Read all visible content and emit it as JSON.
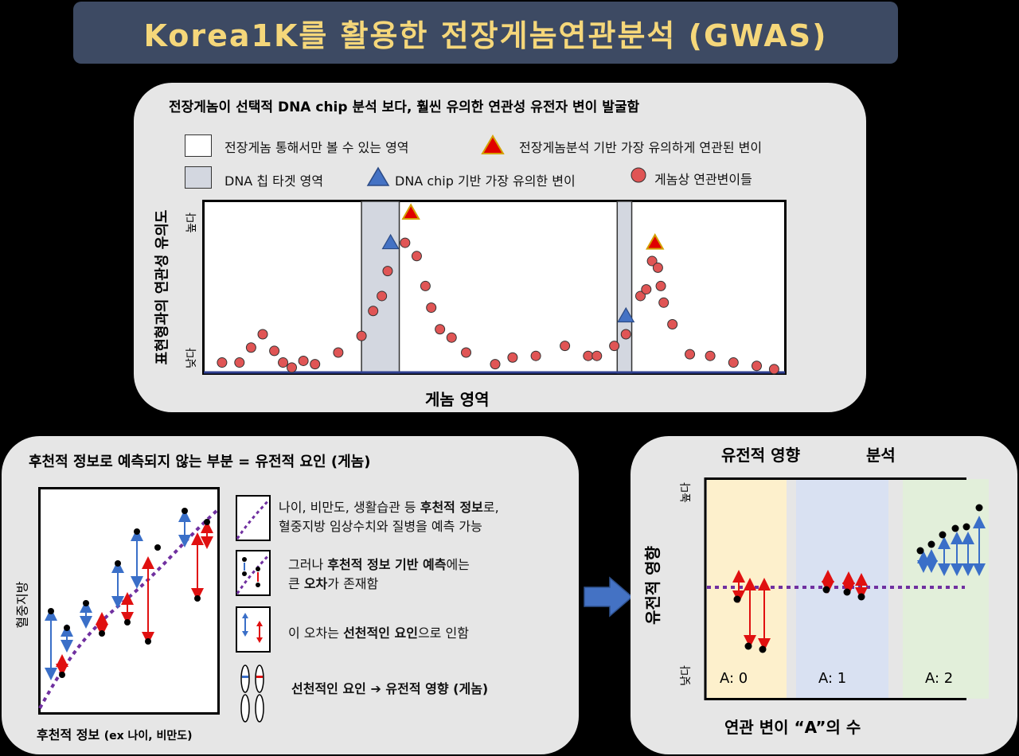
{
  "title": "Korea1K를 활용한 전장게놈연관분석 (GWAS)",
  "top": {
    "header": "전장게놈이 선택적 DNA chip 분석 보다, 훨씬 유의한 연관성 유전자 변이 발굴함",
    "legend": {
      "wgs_region": "전장게놈 통해서만 볼 수 있는 영역",
      "chip_region": "DNA 칩 타겟 영역",
      "wgs_top": "전장게놈분석 기반 가장 유의하게 연관된 변이",
      "chip_top": "DNA chip 기반 가장 유의한 변이",
      "variants": "게놈상 연관변이들"
    },
    "y_label": "표현형과의 연관성 유의도",
    "y_high": "높다",
    "y_low": "낮다",
    "x_label": "게놈 영역"
  },
  "bottom_left": {
    "header": "후천적 정보로 예측되지 않는 부분 = 유전적 요인 (게놈)",
    "y_label": "혈중지방",
    "x_label_main": "후천적 정보 ",
    "x_label_paren": "(ex 나이, 비만도)",
    "note1_a": "나이, 비만도, 생활습관 등 ",
    "note1_b": "후천적 정보",
    "note1_c": "로,",
    "note1_d": "혈중지방 임상수치와 질병을 예측 가능",
    "note2_a": "그러나 ",
    "note2_b": "후천적 정보 기반 예측",
    "note2_c": "에는",
    "note2_d": "큰 ",
    "note2_e": "오차",
    "note2_f": "가 존재함",
    "note3_a": "이 오차는 ",
    "note3_b": "선천적인 요인",
    "note3_c": "으로 인함",
    "note4": "선천적인 요인 ➔ 유전적 영향 (게놈)"
  },
  "bottom_right": {
    "title_a": "유전적 영향",
    "title_b": "분석",
    "y_label": "유전적 영향",
    "y_high": "높다",
    "y_low": "낮다",
    "x_label": "연관 변이 “A”의 수",
    "groups": [
      "A: 0",
      "A: 1",
      "A: 2"
    ]
  },
  "chart_data": {
    "type": "scatter",
    "xlabel": "게놈 영역",
    "ylabel": "표현형과의 연관성 유의도",
    "y_ticks": [
      "낮다",
      "높다"
    ],
    "series": [
      {
        "name": "게놈상 연관변이들",
        "shape": "circle",
        "color": "#e05555",
        "points": [
          [
            3,
            5
          ],
          [
            6,
            5
          ],
          [
            8,
            14
          ],
          [
            10,
            22
          ],
          [
            12,
            12
          ],
          [
            13.5,
            5
          ],
          [
            15,
            2
          ],
          [
            17,
            6
          ],
          [
            19,
            4
          ],
          [
            23,
            11
          ],
          [
            27,
            21
          ],
          [
            29,
            36
          ],
          [
            30.5,
            45
          ],
          [
            31.5,
            60
          ],
          [
            34.5,
            77
          ],
          [
            36.5,
            69
          ],
          [
            38,
            51
          ],
          [
            39,
            38
          ],
          [
            40.5,
            25
          ],
          [
            42.5,
            20
          ],
          [
            45,
            11
          ],
          [
            50,
            4
          ],
          [
            53,
            8
          ],
          [
            57,
            9
          ],
          [
            62,
            15
          ],
          [
            66,
            9
          ],
          [
            67.5,
            9
          ],
          [
            70.5,
            15
          ],
          [
            72.5,
            22
          ],
          [
            75,
            45
          ],
          [
            76,
            49
          ],
          [
            77,
            66
          ],
          [
            78,
            62
          ],
          [
            78.5,
            51
          ],
          [
            79,
            41
          ],
          [
            80.5,
            28
          ],
          [
            83.5,
            10
          ],
          [
            87,
            9
          ],
          [
            91,
            5
          ],
          [
            95,
            3
          ],
          [
            98,
            1
          ]
        ]
      },
      {
        "name": "DNA chip 기반 가장 유의한 변이",
        "shape": "triangle",
        "color": "#4472c4",
        "points": [
          [
            32,
            77
          ],
          [
            72.5,
            33
          ]
        ]
      },
      {
        "name": "전장게놈분석 기반 가장 유의하게 연관된 변이",
        "shape": "triangle",
        "color": "#e00000",
        "points": [
          [
            35.5,
            95
          ],
          [
            77.5,
            77
          ]
        ]
      }
    ],
    "shaded_regions": [
      [
        27,
        33.5
      ],
      [
        71,
        73.5
      ]
    ]
  },
  "colors": {
    "banner": "#3d4a63",
    "title_text": "#f5d77a",
    "panel": "#e6e6e6",
    "chip_band": "#d3d7e0",
    "variant": "#e05555",
    "chip_tri": "#4472c4",
    "wgs_tri": "#e00000",
    "dotted": "#7030a0",
    "zone0": "#fdf0cc",
    "zone1": "#d9e1f2",
    "zone2": "#e2efda",
    "arrow_blue": "#3a6fc8",
    "arrow_red": "#e01010"
  }
}
